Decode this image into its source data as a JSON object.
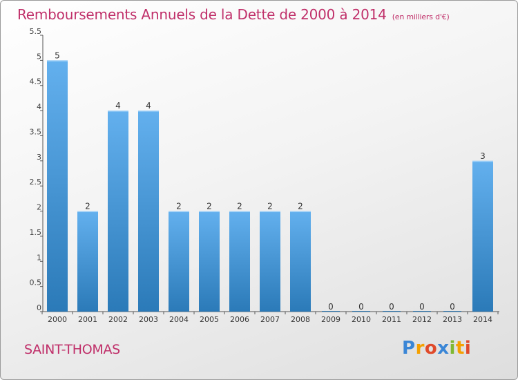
{
  "header": {
    "title": "Remboursements Annuels de la Dette de 2000 à 2014",
    "unit": "(en milliers d'€)"
  },
  "footer": {
    "commune": "SAINT-THOMAS",
    "logo_text": "Proxiti"
  },
  "colors": {
    "title": "#c0306a",
    "bar_top": "#63b0ee",
    "bar_bottom": "#2b7ab8",
    "axis": "#555555",
    "grid": "#c8c8c8"
  },
  "chart_data": {
    "type": "bar",
    "title": "Remboursements Annuels de la Dette de 2000 à 2014",
    "categories": [
      "2000",
      "2001",
      "2002",
      "2003",
      "2004",
      "2005",
      "2006",
      "2007",
      "2008",
      "2009",
      "2010",
      "2011",
      "2012",
      "2013",
      "2014"
    ],
    "values": [
      5,
      2,
      4,
      4,
      2,
      2,
      2,
      2,
      2,
      0,
      0,
      0,
      0,
      0,
      3
    ],
    "data_labels": [
      "5",
      "2",
      "4",
      "4",
      "2",
      "2",
      "2",
      "2",
      "2",
      "0",
      "0",
      "0",
      "0",
      "0",
      "3"
    ],
    "yticks": [
      "0",
      "0.5",
      "1",
      "1.5",
      "2",
      "2.5",
      "3",
      "3.5",
      "4",
      "4.5",
      "5",
      "5.5"
    ],
    "ylim": [
      0,
      5.5
    ],
    "grid": false
  }
}
